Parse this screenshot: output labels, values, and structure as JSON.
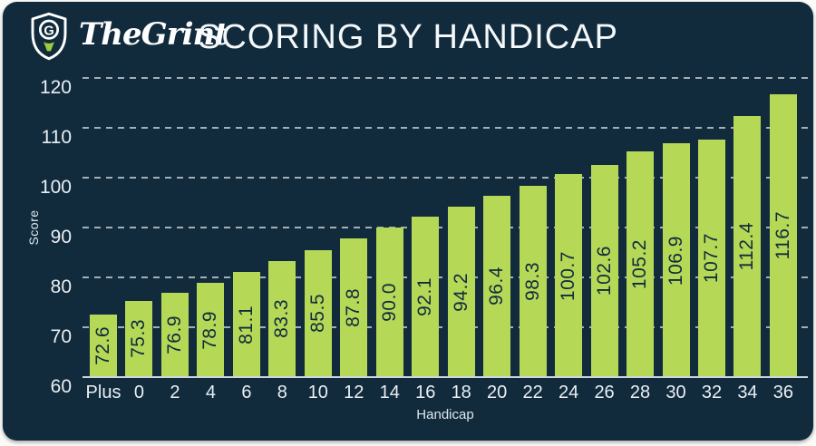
{
  "brand": {
    "name": "TheGrint",
    "logo_icon": "shield-golf-tee-icon"
  },
  "header": {
    "title": "SCORING BY HANDICAP"
  },
  "chart_data": {
    "type": "bar",
    "title": "SCORING BY HANDICAP",
    "xlabel": "Handicap",
    "ylabel": "Score",
    "categories": [
      "Plus",
      "0",
      "2",
      "4",
      "6",
      "8",
      "10",
      "12",
      "14",
      "16",
      "18",
      "20",
      "22",
      "24",
      "26",
      "28",
      "30",
      "32",
      "34",
      "36"
    ],
    "values": [
      72.6,
      75.3,
      76.9,
      78.9,
      81.1,
      83.3,
      85.5,
      87.8,
      90.0,
      92.1,
      94.2,
      96.4,
      98.3,
      100.7,
      102.6,
      105.2,
      106.9,
      107.7,
      112.4,
      116.7
    ],
    "ylim": [
      60,
      120
    ],
    "yticks": [
      60,
      70,
      80,
      90,
      100,
      110,
      120
    ],
    "grid": "horizontal-dashed",
    "legend": "none",
    "value_label_style": "rotated-90-inside-bar",
    "colors": {
      "background": "#112b3d",
      "bar": "#b5d957",
      "value_label": "#112b3d",
      "axis_text": "#e9eff3",
      "gridline": "rgba(255,255,255,0.62)",
      "axis_line": "#ccd6dc",
      "accent_green": "#9ccb3c"
    }
  }
}
